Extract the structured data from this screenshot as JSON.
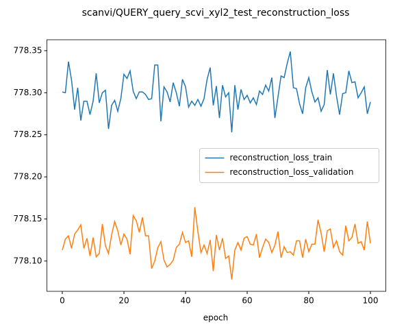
{
  "chart_data": {
    "type": "line",
    "title": "scanvi/QUERY_query_scvi_xyl2_test_reconstruction_loss",
    "x_label": "epoch",
    "x": [
      0,
      1,
      2,
      3,
      4,
      5,
      6,
      7,
      8,
      9,
      10,
      11,
      12,
      13,
      14,
      15,
      16,
      17,
      18,
      19,
      20,
      21,
      22,
      23,
      24,
      25,
      26,
      27,
      28,
      29,
      30,
      31,
      32,
      33,
      34,
      35,
      36,
      37,
      38,
      39,
      40,
      41,
      42,
      43,
      44,
      45,
      46,
      47,
      48,
      49,
      50,
      51,
      52,
      53,
      54,
      55,
      56,
      57,
      58,
      59,
      60,
      61,
      62,
      63,
      64,
      65,
      66,
      67,
      68,
      69,
      70,
      71,
      72,
      73,
      74,
      75,
      76,
      77,
      78,
      79,
      80,
      81,
      82,
      83,
      84,
      85,
      86,
      87,
      88,
      89,
      90,
      91,
      92,
      93,
      94,
      95,
      96,
      97,
      98,
      99,
      100
    ],
    "series": [
      {
        "name": "reconstruction_loss_train",
        "color": "#1f77b4",
        "values": [
          778.301,
          778.3,
          778.337,
          778.315,
          778.28,
          778.306,
          778.267,
          778.29,
          778.29,
          778.274,
          778.29,
          778.323,
          778.288,
          778.3,
          778.303,
          778.257,
          778.285,
          778.291,
          778.278,
          778.293,
          778.322,
          778.317,
          778.326,
          778.302,
          778.293,
          778.301,
          778.301,
          778.298,
          778.292,
          778.293,
          778.333,
          778.333,
          778.266,
          778.307,
          778.301,
          778.289,
          778.312,
          778.3,
          778.284,
          778.316,
          778.307,
          778.283,
          778.29,
          778.285,
          778.292,
          778.284,
          778.293,
          778.316,
          778.33,
          778.285,
          778.308,
          778.27,
          778.309,
          778.295,
          778.3,
          778.253,
          778.309,
          778.28,
          778.304,
          778.292,
          778.297,
          778.288,
          778.294,
          778.286,
          778.302,
          778.298,
          778.309,
          778.302,
          778.318,
          778.27,
          778.295,
          778.32,
          778.318,
          778.335,
          778.349,
          778.306,
          778.305,
          778.287,
          778.275,
          778.306,
          778.318,
          778.301,
          778.289,
          778.294,
          778.278,
          778.286,
          778.327,
          778.298,
          778.323,
          778.296,
          778.274,
          778.299,
          778.3,
          778.326,
          778.312,
          778.313,
          778.294,
          778.3,
          778.307,
          778.275,
          778.289
        ]
      },
      {
        "name": "reconstruction_loss_validation",
        "color": "#ff7f0e",
        "values": [
          778.113,
          778.126,
          778.13,
          778.115,
          778.132,
          778.137,
          778.143,
          778.115,
          778.127,
          778.106,
          778.128,
          778.105,
          778.109,
          778.144,
          778.118,
          778.109,
          778.131,
          778.147,
          778.136,
          778.119,
          778.132,
          778.126,
          778.108,
          778.154,
          778.148,
          778.134,
          778.152,
          778.13,
          778.13,
          778.091,
          778.1,
          778.116,
          778.123,
          778.101,
          778.093,
          778.096,
          778.101,
          778.116,
          778.12,
          778.134,
          778.122,
          778.124,
          778.105,
          778.164,
          778.135,
          778.11,
          778.119,
          778.109,
          778.125,
          778.088,
          778.131,
          778.113,
          778.127,
          778.103,
          778.106,
          778.078,
          778.113,
          778.122,
          778.113,
          778.127,
          778.129,
          778.12,
          778.119,
          778.132,
          778.104,
          778.116,
          778.126,
          778.122,
          778.11,
          778.119,
          778.135,
          778.104,
          778.117,
          778.11,
          778.111,
          778.107,
          778.124,
          778.124,
          778.104,
          778.126,
          778.111,
          778.12,
          778.12,
          778.149,
          778.133,
          778.111,
          778.136,
          778.138,
          778.116,
          778.124,
          778.111,
          778.107,
          778.142,
          778.124,
          778.128,
          778.144,
          778.121,
          778.123,
          778.113,
          778.147,
          778.121
        ]
      }
    ],
    "xlim": [
      -5,
      105
    ],
    "xticks": [
      0,
      20,
      40,
      60,
      80,
      100
    ],
    "ylim": [
      778.064,
      778.363
    ],
    "yticks": [
      {
        "value": 778.1,
        "label": "778.10"
      },
      778.15,
      {
        "value": 778.2,
        "label": "778.20"
      },
      778.25,
      {
        "value": 778.3,
        "label": "778.30"
      },
      778.35
    ],
    "grid": false,
    "legend": "center right"
  }
}
